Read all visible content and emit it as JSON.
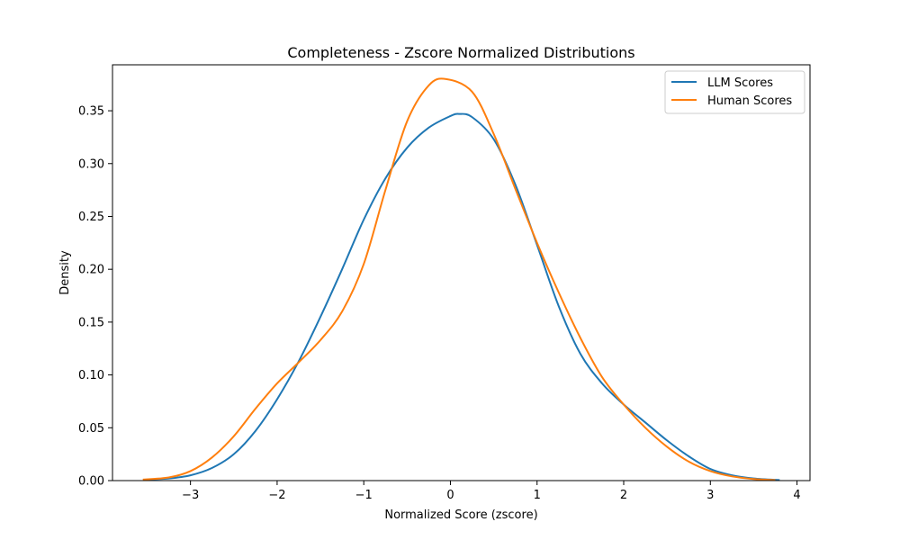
{
  "chart_data": {
    "type": "line",
    "title": "Completeness - Zscore Normalized Distributions",
    "xlabel": "Normalized Score (zscore)",
    "ylabel": "Density",
    "xlim": [
      -3.9,
      4.15
    ],
    "ylim": [
      0,
      0.3935
    ],
    "x_ticks": [
      -3,
      -2,
      -1,
      0,
      1,
      2,
      3,
      4
    ],
    "x_tick_labels": [
      "−3",
      "−2",
      "−1",
      "0",
      "1",
      "2",
      "3",
      "4"
    ],
    "y_ticks": [
      0.0,
      0.05,
      0.1,
      0.15,
      0.2,
      0.25,
      0.3,
      0.35
    ],
    "y_tick_labels": [
      "0.00",
      "0.05",
      "0.10",
      "0.15",
      "0.20",
      "0.25",
      "0.30",
      "0.35"
    ],
    "grid": false,
    "legend_position": "top-right",
    "series": [
      {
        "name": "LLM Scores",
        "color": "#1f77b4",
        "x": [
          -3.5,
          -3.25,
          -3.0,
          -2.75,
          -2.5,
          -2.25,
          -2.0,
          -1.75,
          -1.5,
          -1.25,
          -1.0,
          -0.75,
          -0.5,
          -0.25,
          0.0,
          0.1,
          0.25,
          0.5,
          0.75,
          1.0,
          1.25,
          1.5,
          1.75,
          2.0,
          2.25,
          2.5,
          2.75,
          3.0,
          3.25,
          3.5,
          3.8
        ],
        "y": [
          0.001,
          0.002,
          0.005,
          0.012,
          0.025,
          0.047,
          0.077,
          0.113,
          0.155,
          0.2,
          0.247,
          0.286,
          0.315,
          0.334,
          0.345,
          0.347,
          0.344,
          0.323,
          0.28,
          0.223,
          0.165,
          0.12,
          0.092,
          0.072,
          0.055,
          0.038,
          0.023,
          0.011,
          0.005,
          0.002,
          0.0005
        ]
      },
      {
        "name": "Human Scores",
        "color": "#ff7f0e",
        "x": [
          -3.55,
          -3.25,
          -3.0,
          -2.75,
          -2.5,
          -2.25,
          -2.0,
          -1.75,
          -1.5,
          -1.25,
          -1.0,
          -0.75,
          -0.5,
          -0.25,
          -0.05,
          0.25,
          0.5,
          0.75,
          1.0,
          1.25,
          1.5,
          1.75,
          2.0,
          2.25,
          2.5,
          2.75,
          3.0,
          3.25,
          3.5,
          3.75
        ],
        "y": [
          0.001,
          0.003,
          0.009,
          0.022,
          0.042,
          0.068,
          0.092,
          0.112,
          0.133,
          0.16,
          0.205,
          0.275,
          0.34,
          0.374,
          0.38,
          0.368,
          0.328,
          0.276,
          0.225,
          0.178,
          0.135,
          0.098,
          0.072,
          0.05,
          0.032,
          0.018,
          0.009,
          0.004,
          0.0015,
          0.0005
        ]
      }
    ]
  }
}
